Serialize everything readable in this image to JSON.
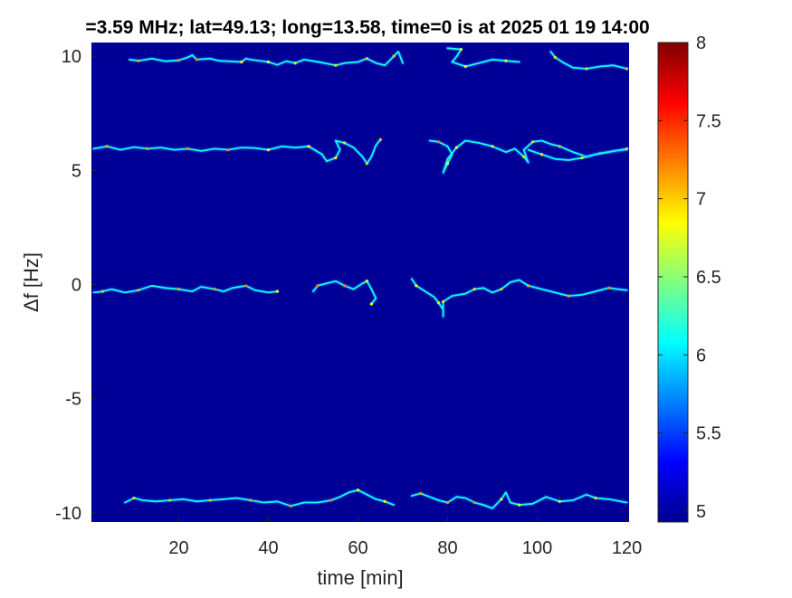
{
  "chart_data": {
    "type": "heatmap",
    "title": "=3.59 MHz;  lat=49.13; long=13.58, time=0 is at 2025 01 19 14:00",
    "xlabel": "time [min]",
    "ylabel": "Δf [Hz]",
    "xlim": [
      0.5,
      120.5
    ],
    "ylim": [
      -10.4,
      10.6
    ],
    "x_ticks": [
      20,
      40,
      60,
      80,
      100,
      120
    ],
    "y_ticks": [
      10,
      5,
      0,
      -5,
      -10
    ],
    "background_value": 5.0,
    "colorbar": {
      "range": [
        4.93,
        8.0
      ],
      "ticks": [
        5,
        5.5,
        6,
        6.5,
        7,
        7.5,
        8
      ],
      "colormap": "jet"
    },
    "traces": [
      {
        "band": "10 Hz",
        "points": [
          [
            9,
            9.85
          ],
          [
            11,
            9.8
          ],
          [
            14,
            9.9
          ],
          [
            17,
            9.78
          ],
          [
            20,
            9.82
          ],
          [
            22,
            9.95
          ],
          [
            23,
            10.05
          ],
          [
            24,
            9.85
          ],
          [
            27,
            9.9
          ],
          [
            29,
            9.8
          ],
          [
            34,
            9.75
          ],
          [
            35,
            9.9
          ],
          [
            36,
            9.85
          ],
          [
            40,
            9.75
          ],
          [
            42,
            9.62
          ],
          [
            44,
            9.78
          ],
          [
            46,
            9.7
          ],
          [
            48,
            9.85
          ],
          [
            52,
            9.72
          ],
          [
            55,
            9.6
          ],
          [
            57,
            9.7
          ],
          [
            60,
            9.75
          ],
          [
            62,
            9.9
          ],
          [
            64,
            9.7
          ],
          [
            66,
            9.6
          ],
          [
            68,
            10.0
          ],
          [
            69,
            10.2
          ],
          [
            70,
            9.7
          ]
        ]
      },
      {
        "band": "10 Hz",
        "points": [
          [
            80,
            10.35
          ],
          [
            83,
            10.3
          ],
          [
            82,
            9.98
          ],
          [
            81,
            9.75
          ],
          [
            84,
            9.55
          ],
          [
            87,
            9.7
          ],
          [
            90,
            9.85
          ],
          [
            93,
            9.8
          ],
          [
            96,
            9.75
          ]
        ]
      },
      {
        "band": "10 Hz",
        "points": [
          [
            103,
            10.2
          ],
          [
            104,
            9.95
          ],
          [
            106,
            9.7
          ],
          [
            108,
            9.5
          ],
          [
            111,
            9.45
          ],
          [
            114,
            9.55
          ],
          [
            117,
            9.6
          ],
          [
            120,
            9.45
          ]
        ]
      },
      {
        "band": "6 Hz",
        "points": [
          [
            1,
            5.95
          ],
          [
            4,
            6.05
          ],
          [
            7,
            5.9
          ],
          [
            10,
            6.02
          ],
          [
            13,
            5.95
          ],
          [
            16,
            6.0
          ],
          [
            19,
            5.9
          ],
          [
            22,
            5.95
          ],
          [
            25,
            5.85
          ],
          [
            28,
            5.95
          ],
          [
            31,
            5.9
          ],
          [
            34,
            6.0
          ],
          [
            37,
            5.98
          ],
          [
            40,
            5.9
          ],
          [
            43,
            6.05
          ],
          [
            46,
            6.0
          ],
          [
            49,
            6.05
          ],
          [
            52,
            5.7
          ],
          [
            53,
            5.4
          ],
          [
            55,
            5.55
          ],
          [
            56,
            5.9
          ],
          [
            55,
            6.3
          ],
          [
            57,
            6.2
          ],
          [
            59,
            6.0
          ],
          [
            61,
            5.6
          ],
          [
            62,
            5.3
          ],
          [
            63,
            5.6
          ],
          [
            64,
            6.1
          ],
          [
            65,
            6.35
          ]
        ]
      },
      {
        "band": "6 Hz",
        "points": [
          [
            76,
            6.3
          ],
          [
            78,
            6.25
          ],
          [
            80,
            6.05
          ],
          [
            81,
            5.7
          ],
          [
            80,
            5.3
          ],
          [
            79,
            4.9
          ],
          [
            80,
            5.5
          ],
          [
            82,
            6.0
          ],
          [
            84,
            6.3
          ],
          [
            87,
            6.2
          ],
          [
            90,
            6.05
          ],
          [
            93,
            5.8
          ],
          [
            95,
            5.95
          ],
          [
            97,
            5.6
          ],
          [
            98,
            5.35
          ],
          [
            97,
            5.9
          ],
          [
            99,
            6.25
          ],
          [
            101,
            6.3
          ],
          [
            103,
            6.15
          ],
          [
            105,
            6.05
          ],
          [
            108,
            5.8
          ],
          [
            111,
            5.6
          ],
          [
            114,
            5.75
          ],
          [
            117,
            5.85
          ],
          [
            120,
            5.9
          ]
        ]
      },
      {
        "band": "6 Hz",
        "points": [
          [
            98,
            5.9
          ],
          [
            101,
            5.7
          ],
          [
            104,
            5.5
          ],
          [
            107,
            5.45
          ],
          [
            110,
            5.55
          ],
          [
            113,
            5.7
          ],
          [
            116,
            5.8
          ],
          [
            120,
            5.95
          ]
        ]
      },
      {
        "band": "0 Hz",
        "points": [
          [
            1,
            -0.35
          ],
          [
            3,
            -0.3
          ],
          [
            5,
            -0.2
          ],
          [
            8,
            -0.35
          ],
          [
            11,
            -0.25
          ],
          [
            14,
            -0.05
          ],
          [
            17,
            -0.15
          ],
          [
            20,
            -0.2
          ],
          [
            23,
            -0.3
          ],
          [
            25,
            -0.1
          ],
          [
            28,
            -0.2
          ],
          [
            30,
            -0.3
          ],
          [
            32,
            -0.15
          ],
          [
            35,
            -0.05
          ],
          [
            37,
            -0.25
          ],
          [
            40,
            -0.35
          ],
          [
            42,
            -0.3
          ]
        ]
      },
      {
        "band": "0 Hz",
        "points": [
          [
            50,
            -0.3
          ],
          [
            51,
            -0.05
          ],
          [
            53,
            0.05
          ],
          [
            55,
            0.15
          ],
          [
            57,
            -0.05
          ],
          [
            59,
            -0.2
          ],
          [
            61,
            0.05
          ],
          [
            62,
            0.15
          ],
          [
            63,
            -0.2
          ],
          [
            64,
            -0.6
          ],
          [
            63,
            -0.85
          ]
        ]
      },
      {
        "band": "0 Hz",
        "points": [
          [
            72,
            0.25
          ],
          [
            73,
            -0.05
          ],
          [
            75,
            -0.3
          ],
          [
            77,
            -0.55
          ],
          [
            78,
            -0.8
          ],
          [
            79,
            -1.1
          ],
          [
            79,
            -1.4
          ],
          [
            79,
            -0.75
          ],
          [
            81,
            -0.5
          ],
          [
            84,
            -0.4
          ],
          [
            86,
            -0.2
          ],
          [
            88,
            -0.15
          ],
          [
            90,
            -0.35
          ],
          [
            92,
            -0.2
          ],
          [
            94,
            0.1
          ],
          [
            96,
            0.2
          ],
          [
            98,
            -0.05
          ],
          [
            101,
            -0.2
          ],
          [
            104,
            -0.35
          ],
          [
            107,
            -0.5
          ],
          [
            110,
            -0.45
          ],
          [
            113,
            -0.3
          ],
          [
            116,
            -0.15
          ],
          [
            118,
            -0.2
          ],
          [
            120,
            -0.25
          ]
        ]
      },
      {
        "band": "-10 Hz",
        "points": [
          [
            8,
            -9.55
          ],
          [
            10,
            -9.35
          ],
          [
            12,
            -9.45
          ],
          [
            15,
            -9.5
          ],
          [
            18,
            -9.45
          ],
          [
            21,
            -9.4
          ],
          [
            24,
            -9.5
          ],
          [
            27,
            -9.45
          ],
          [
            30,
            -9.4
          ],
          [
            33,
            -9.35
          ],
          [
            36,
            -9.45
          ],
          [
            39,
            -9.55
          ],
          [
            42,
            -9.5
          ],
          [
            45,
            -9.7
          ],
          [
            48,
            -9.55
          ],
          [
            51,
            -9.55
          ],
          [
            54,
            -9.45
          ],
          [
            56,
            -9.3
          ],
          [
            58,
            -9.1
          ],
          [
            60,
            -9.0
          ],
          [
            62,
            -9.2
          ],
          [
            64,
            -9.4
          ],
          [
            66,
            -9.5
          ],
          [
            68,
            -9.65
          ]
        ]
      },
      {
        "band": "-10 Hz",
        "points": [
          [
            72,
            -9.25
          ],
          [
            74,
            -9.15
          ],
          [
            76,
            -9.3
          ],
          [
            78,
            -9.45
          ],
          [
            80,
            -9.55
          ],
          [
            82,
            -9.3
          ],
          [
            84,
            -9.35
          ],
          [
            86,
            -9.55
          ],
          [
            88,
            -9.65
          ],
          [
            90,
            -9.8
          ],
          [
            92,
            -9.4
          ],
          [
            93,
            -9.1
          ],
          [
            94,
            -9.55
          ],
          [
            96,
            -9.65
          ],
          [
            99,
            -9.6
          ],
          [
            102,
            -9.3
          ],
          [
            105,
            -9.5
          ],
          [
            108,
            -9.45
          ],
          [
            111,
            -9.2
          ],
          [
            113,
            -9.35
          ],
          [
            116,
            -9.4
          ],
          [
            120,
            -9.55
          ]
        ]
      }
    ]
  }
}
